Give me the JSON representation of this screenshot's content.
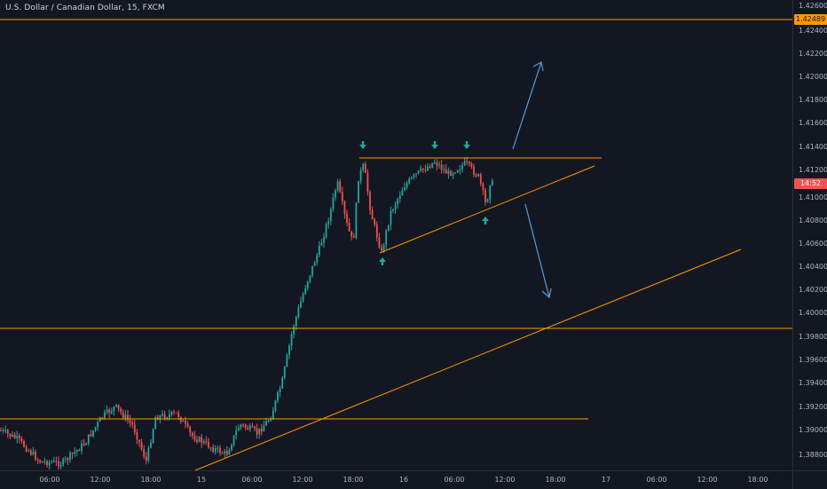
{
  "header": {
    "symbol_title": "U.S. Dollar / Canadian Dollar, 15, FXCM"
  },
  "price_axis": {
    "ticks": [
      "1.42600",
      "1.42400",
      "1.42200",
      "1.42000",
      "1.41800",
      "1.41600",
      "1.41400",
      "1.41200",
      "1.41000",
      "1.40800",
      "1.40600",
      "1.40400",
      "1.40200",
      "1.40000",
      "1.39800",
      "1.39600",
      "1.39400",
      "1.39200",
      "1.39000",
      "1.38800"
    ],
    "resistance_label": "1.42489",
    "countdown_label": "14:52",
    "resistance_color": "#ff9800",
    "countdown_color": "#ef5350"
  },
  "time_axis": {
    "ticks": [
      "06:00",
      "12:00",
      "18:00",
      "15",
      "06:00",
      "12:00",
      "18:00",
      "16",
      "06:00",
      "12:00",
      "18:00",
      "17",
      "06:00",
      "12:00",
      "18:00"
    ]
  },
  "colors": {
    "up_candle": "#26a69a",
    "down_candle": "#ef5350",
    "drawing_lines": "#ff9800",
    "arrows": "#5b9bd5",
    "markers": "#26a69a"
  },
  "icons": {
    "top_markers": [
      "arrow-down-icon",
      "arrow-down-icon",
      "arrow-down-icon"
    ],
    "bottom_markers": [
      "arrow-up-icon",
      "arrow-up-icon"
    ],
    "projections": [
      "arrow-up-projection",
      "arrow-down-projection"
    ]
  }
}
